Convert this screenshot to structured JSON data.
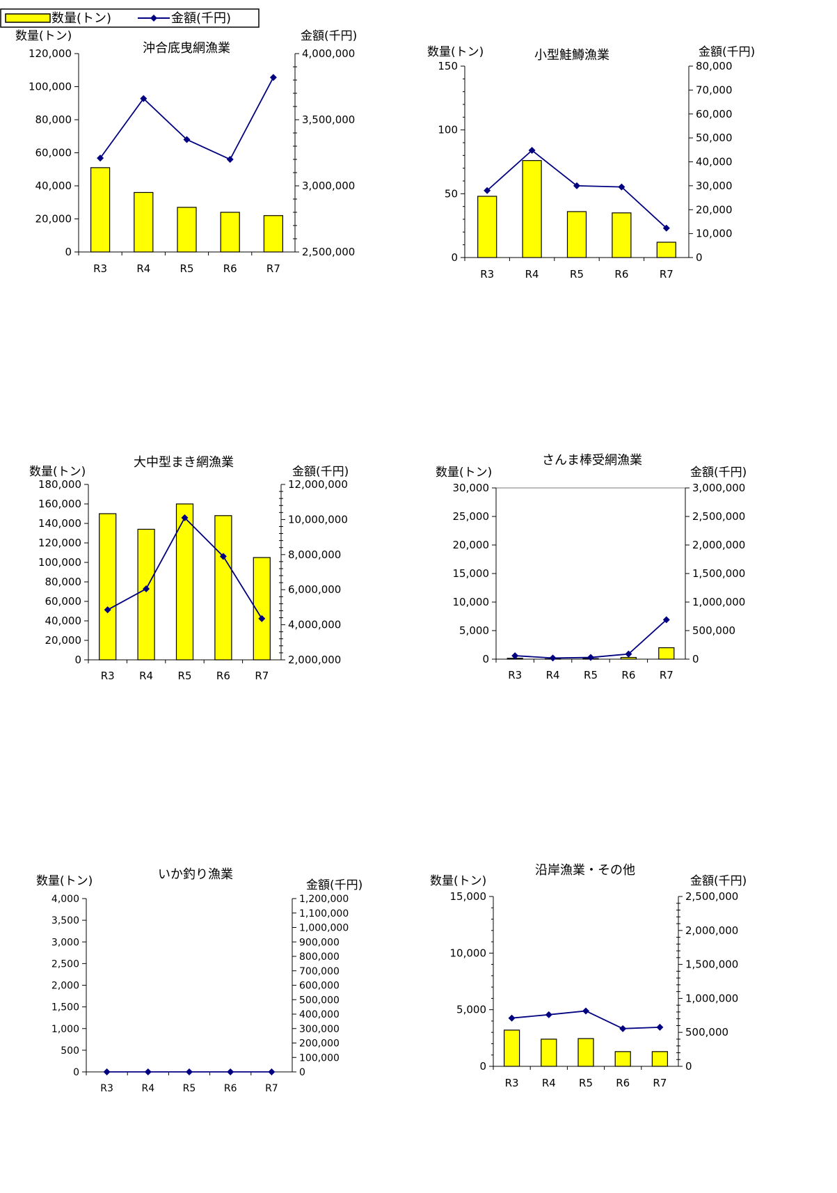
{
  "legend": {
    "quantity_label": "数量(トン)",
    "amount_label": "金額(千円)",
    "colors": {
      "bar_fill": "#ffff00",
      "bar_stroke": "#000000",
      "line": "#000080"
    },
    "icons": {
      "quantity": "yellow-bar-swatch",
      "amount": "navy-line-diamond-marker"
    }
  },
  "chart_data": [
    {
      "type": "bar+line",
      "title": "沖合底曳網漁業",
      "ylabel_left": "数量(トン)",
      "ylabel_right": "金額(千円)",
      "categories": [
        "R3",
        "R4",
        "R5",
        "R6",
        "R7"
      ],
      "ylim_left": [
        0,
        120000
      ],
      "ylim_right": [
        2500000,
        4000000
      ],
      "yticks_left": [
        "0",
        "20,000",
        "40,000",
        "60,000",
        "80,000",
        "100,000",
        "120,000"
      ],
      "yticks_right": [
        "2,500,000",
        "3,000,000",
        "3,500,000",
        "4,000,000"
      ],
      "series": [
        {
          "name": "数量(トン)",
          "type": "bar",
          "axis": "left",
          "values": [
            51000,
            36000,
            27000,
            24000,
            22000
          ]
        },
        {
          "name": "金額(千円)",
          "type": "line",
          "axis": "right",
          "values": [
            3210000,
            3660000,
            3350000,
            3200000,
            3820000
          ]
        }
      ]
    },
    {
      "type": "bar+line",
      "title": "小型鮭鱒漁業",
      "ylabel_left": "数量(トン)",
      "ylabel_right": "金額(千円)",
      "categories": [
        "R3",
        "R4",
        "R5",
        "R6",
        "R7"
      ],
      "ylim_left": [
        0,
        150
      ],
      "ylim_right": [
        0,
        80000
      ],
      "yticks_left": [
        "0",
        "50",
        "100",
        "150"
      ],
      "yticks_right": [
        "0",
        "10,000",
        "20,000",
        "30,000",
        "40,000",
        "50,000",
        "60,000",
        "70,000",
        "80,000"
      ],
      "series": [
        {
          "name": "数量(トン)",
          "type": "bar",
          "axis": "left",
          "values": [
            48,
            76,
            36,
            35,
            12
          ]
        },
        {
          "name": "金額(千円)",
          "type": "line",
          "axis": "right",
          "values": [
            28000,
            44800,
            30000,
            29500,
            12300
          ]
        }
      ]
    },
    {
      "type": "bar+line",
      "title": "大中型まき網漁業",
      "ylabel_left": "数量(トン)",
      "ylabel_right": "金額(千円)",
      "categories": [
        "R3",
        "R4",
        "R5",
        "R6",
        "R7"
      ],
      "ylim_left": [
        0,
        180000
      ],
      "ylim_right": [
        2000000,
        12000000
      ],
      "yticks_left": [
        "0",
        "20,000",
        "40,000",
        "60,000",
        "80,000",
        "100,000",
        "120,000",
        "140,000",
        "160,000",
        "180,000"
      ],
      "yticks_right": [
        "2,000,000",
        "4,000,000",
        "6,000,000",
        "8,000,000",
        "10,000,000",
        "12,000,000"
      ],
      "series": [
        {
          "name": "数量(トン)",
          "type": "bar",
          "axis": "left",
          "values": [
            150000,
            134000,
            160000,
            148000,
            105000
          ]
        },
        {
          "name": "金額(千円)",
          "type": "line",
          "axis": "right",
          "values": [
            4850000,
            6050000,
            10100000,
            7900000,
            4350000
          ]
        }
      ]
    },
    {
      "type": "bar+line",
      "title": "さんま棒受網漁業",
      "ylabel_left": "数量(トン)",
      "ylabel_right": "金額(千円)",
      "categories": [
        "R3",
        "R4",
        "R5",
        "R6",
        "R7"
      ],
      "ylim_left": [
        0,
        30000
      ],
      "ylim_right": [
        0,
        3000000
      ],
      "yticks_left": [
        "0",
        "5,000",
        "10,000",
        "15,000",
        "20,000",
        "25,000",
        "30,000"
      ],
      "yticks_right": [
        "0",
        "500,000",
        "1,000,000",
        "1,500,000",
        "2,000,000",
        "2,500,000",
        "3,000,000"
      ],
      "series": [
        {
          "name": "数量(トン)",
          "type": "bar",
          "axis": "left",
          "values": [
            150,
            50,
            100,
            300,
            2000
          ]
        },
        {
          "name": "金額(千円)",
          "type": "line",
          "axis": "right",
          "values": [
            60000,
            20000,
            30000,
            90000,
            690000
          ]
        }
      ]
    },
    {
      "type": "bar+line",
      "title": "いか釣り漁業",
      "ylabel_left": "数量(トン)",
      "ylabel_right": "金額(千円)",
      "categories": [
        "R3",
        "R4",
        "R5",
        "R6",
        "R7"
      ],
      "ylim_left": [
        0,
        4000
      ],
      "ylim_right": [
        0,
        1200000
      ],
      "yticks_left": [
        "0",
        "500",
        "1,000",
        "1,500",
        "2,000",
        "2,500",
        "3,000",
        "3,500",
        "4,000"
      ],
      "yticks_right": [
        "0",
        "100,000",
        "200,000",
        "300,000",
        "400,000",
        "500,000",
        "600,000",
        "700,000",
        "800,000",
        "900,000",
        "1,000,000",
        "1,100,000",
        "1,200,000"
      ],
      "series": [
        {
          "name": "数量(トン)",
          "type": "bar",
          "axis": "left",
          "values": [
            0,
            0,
            0,
            0,
            0
          ]
        },
        {
          "name": "金額(千円)",
          "type": "line",
          "axis": "right",
          "values": [
            0,
            0,
            0,
            0,
            0
          ]
        }
      ]
    },
    {
      "type": "bar+line",
      "title": "沿岸漁業・その他",
      "ylabel_left": "数量(トン)",
      "ylabel_right": "金額(千円)",
      "categories": [
        "R3",
        "R4",
        "R5",
        "R6",
        "R7"
      ],
      "ylim_left": [
        0,
        15000
      ],
      "ylim_right": [
        0,
        2500000
      ],
      "yticks_left": [
        "0",
        "5,000",
        "10,000",
        "15,000"
      ],
      "yticks_right": [
        "0",
        "500,000",
        "1,000,000",
        "1,500,000",
        "2,000,000",
        "2,500,000"
      ],
      "series": [
        {
          "name": "数量(トン)",
          "type": "bar",
          "axis": "left",
          "values": [
            3200,
            2400,
            2450,
            1300,
            1300
          ]
        },
        {
          "name": "金額(千円)",
          "type": "line",
          "axis": "right",
          "values": [
            710000,
            760000,
            815000,
            555000,
            575000
          ]
        }
      ]
    }
  ]
}
